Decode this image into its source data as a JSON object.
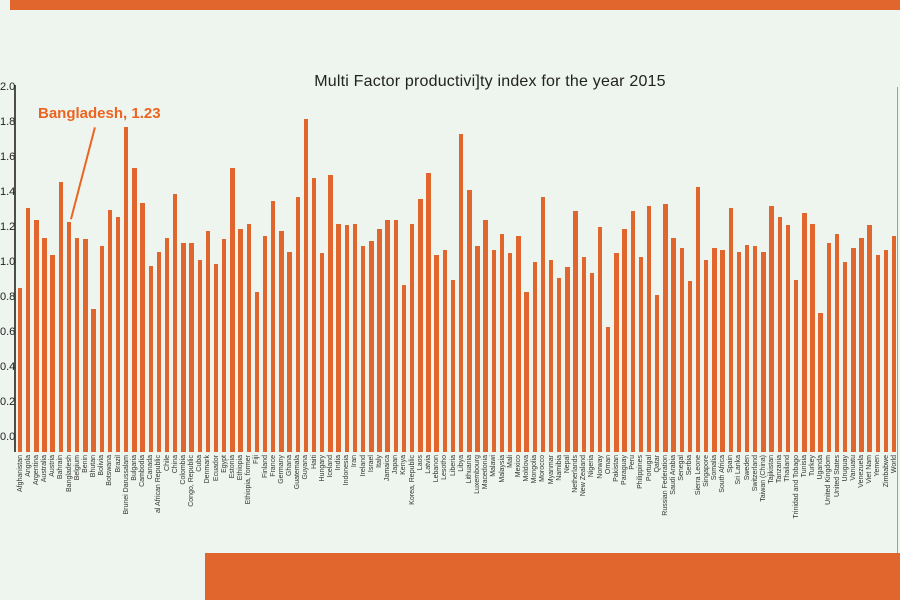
{
  "page": {
    "background_color": "#eef4ee"
  },
  "decorations": {
    "top_band_color": "#e1662d",
    "bottom_band_color": "#e1662d"
  },
  "annotation": {
    "text": "Bangladesh, 1.23",
    "color": "#ed6420",
    "target_category": "Bangladesh"
  },
  "chart_data": {
    "type": "bar",
    "title": "Multi Factor productivi]ty index for the year 2015",
    "bar_color": "#e1662d",
    "xlabel": "",
    "ylabel": "",
    "ylim": [
      0,
      2.0
    ],
    "yticks": [
      "0.0",
      "0.2",
      "0.4",
      "0.6",
      "0.8",
      "1.0",
      "1.2",
      "1.4",
      "1.6",
      "1.8",
      "2.0"
    ],
    "grid": false,
    "legend_position": "none",
    "categories": [
      "Afghanistan",
      "Angola",
      "Argentina",
      "Australia",
      "Austria",
      "Bahrain",
      "Bangladesh",
      "Belgium",
      "Benin",
      "Bhutan",
      "Bolivia",
      "Botswana",
      "Brazil",
      "Brunei Darussalam",
      "Bulgaria",
      "Cambodia",
      "Canada",
      "al African Republic",
      "Chile",
      "China",
      "Colombia",
      "Congo, Republic",
      "Cuba",
      "Denmark",
      "Ecuador",
      "Egypt",
      "Estonia",
      "Ethiopia",
      "Ethiopia, former",
      "Fiji",
      "Finland",
      "France",
      "Germany",
      "Ghana",
      "Guatemala",
      "Guyana",
      "Haiti",
      "Hungary",
      "Iceland",
      "India",
      "Indonesia",
      "Iran",
      "Ireland",
      "Israel",
      "Italy",
      "Jamaica",
      "Japan",
      "Kenya",
      "Korea, Republic",
      "Laos",
      "Latvia",
      "Lebanon",
      "Lesotho",
      "Liberia",
      "Libya",
      "Lithuania",
      "Luxembourg",
      "Macedonia",
      "Malawi",
      "Malaysia",
      "Mali",
      "Mexico",
      "Moldova",
      "Mongolia",
      "Morocco",
      "Myanmar",
      "Namibia",
      "Nepal",
      "Netherlands",
      "New Zealand",
      "Nigeria",
      "Norway",
      "Oman",
      "Pakistan",
      "Paraguay",
      "Peru",
      "Philippines",
      "Portugal",
      "Qatar",
      "Russian Federation",
      "Saudi Arabia",
      "Senegal",
      "Serbia",
      "Sierra Leone",
      "Singapore",
      "Somalia",
      "South Africa",
      "Spain",
      "Sri Lanka",
      "Sweden",
      "Switzerland",
      "Taiwan (China)",
      "Tajikistan",
      "Tanzania",
      "Thailand",
      "Trinidad and Tobago",
      "Tunisia",
      "Turkey",
      "Uganda",
      "United Kingdom",
      "United States",
      "Uruguay",
      "Vanuatu",
      "Venezuela",
      "Viet Nam",
      "Yemen",
      "Zimbabwe",
      "World"
    ],
    "values": [
      0.85,
      1.31,
      1.24,
      1.14,
      1.04,
      1.46,
      1.23,
      1.14,
      1.13,
      0.73,
      1.09,
      1.3,
      1.26,
      1.77,
      1.54,
      1.34,
      0.98,
      1.06,
      1.14,
      1.39,
      1.11,
      1.11,
      1.01,
      1.18,
      0.99,
      1.13,
      1.54,
      1.19,
      1.22,
      0.83,
      1.15,
      1.35,
      1.18,
      1.06,
      1.37,
      1.82,
      1.48,
      1.05,
      1.5,
      1.22,
      1.21,
      1.22,
      1.09,
      1.12,
      1.19,
      1.24,
      1.24,
      0.87,
      1.22,
      1.36,
      1.51,
      1.04,
      1.07,
      0.9,
      1.73,
      1.41,
      1.09,
      1.24,
      1.07,
      1.16,
      1.05,
      1.15,
      0.83,
      1.0,
      1.37,
      1.01,
      0.91,
      0.97,
      1.29,
      1.03,
      0.94,
      1.2,
      0.63,
      1.05,
      1.19,
      1.29,
      1.03,
      1.32,
      0.81,
      1.33,
      1.14,
      1.08,
      0.89,
      1.43,
      1.01,
      1.08,
      1.07,
      1.31,
      1.06,
      1.1,
      1.09,
      1.06,
      1.32,
      1.26,
      1.21,
      0.9,
      1.28,
      1.22,
      0.71,
      1.11,
      1.16,
      1.0,
      1.08,
      1.14,
      1.21,
      1.04,
      1.07,
      1.15
    ]
  }
}
